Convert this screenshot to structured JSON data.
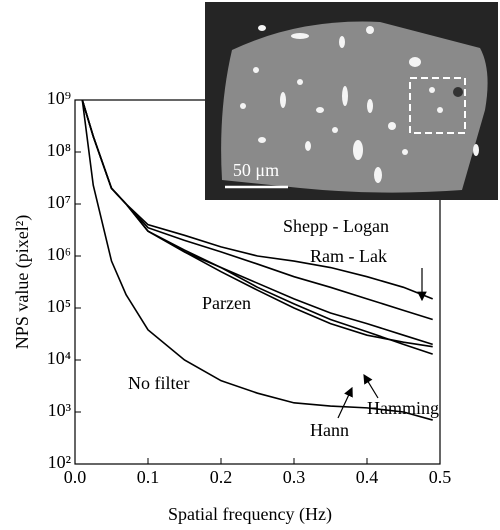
{
  "chart_data": {
    "type": "line",
    "xlabel": "Spatial frequency (Hz)",
    "ylabel": "NPS value (pixel²)",
    "log_y": true,
    "color": "#000000",
    "xlim": [
      0,
      0.5
    ],
    "ylim": [
      100,
      1000000000
    ],
    "xticks": [
      {
        "value": 0,
        "label": "0.0"
      },
      0.1,
      0.2,
      0.3,
      0.4,
      0.5
    ],
    "yticks": [
      {
        "value": 100,
        "label": "10²"
      },
      {
        "value": 1000,
        "label": "10³"
      },
      {
        "value": 10000,
        "label": "10⁴"
      },
      {
        "value": 100000,
        "label": "10⁵"
      },
      {
        "value": 1000000,
        "label": "10⁶"
      },
      {
        "value": 10000000,
        "label": "10⁷"
      },
      {
        "value": 100000000,
        "label": "10⁸"
      },
      {
        "value": 1000000000,
        "label": "10⁹"
      }
    ],
    "x": [
      0.01,
      0.025,
      0.05,
      0.07,
      0.1,
      0.15,
      0.2,
      0.25,
      0.3,
      0.35,
      0.4,
      0.45,
      0.49
    ],
    "series": [
      {
        "name": "Shepp - Logan",
        "color": "#000000",
        "values": [
          1000000000,
          200000000,
          20000000,
          10000000,
          4000000,
          2500000,
          1500000,
          1000000,
          800000,
          600000,
          400000,
          250000,
          150000
        ]
      },
      {
        "name": "Ram - Lak",
        "color": "#000000",
        "values": [
          1000000000,
          200000000,
          20000000,
          10000000,
          3500000,
          2000000,
          1200000,
          700000,
          400000,
          250000,
          150000,
          90000,
          60000
        ]
      },
      {
        "name": "Parzen",
        "color": "#000000",
        "values": [
          1000000000,
          200000000,
          20000000,
          10000000,
          3000000,
          1200000,
          600000,
          300000,
          150000,
          80000,
          50000,
          30000,
          20000
        ]
      },
      {
        "name": "Hann",
        "color": "#000000",
        "values": [
          1000000000,
          200000000,
          20000000,
          10000000,
          3000000,
          1300000,
          600000,
          250000,
          120000,
          60000,
          35000,
          20000,
          13000
        ]
      },
      {
        "name": "Hamming",
        "color": "#000000",
        "values": [
          1000000000,
          200000000,
          20000000,
          10000000,
          3000000,
          1200000,
          500000,
          220000,
          100000,
          50000,
          30000,
          22000,
          18000
        ]
      },
      {
        "name": "No filter",
        "color": "#000000",
        "values": [
          1000000000,
          23000000,
          800000,
          180000,
          38000,
          10000,
          4000,
          2300,
          1500,
          1300,
          1200,
          1000,
          700
        ]
      }
    ]
  },
  "inset": {
    "scale_label": "50 μm"
  }
}
